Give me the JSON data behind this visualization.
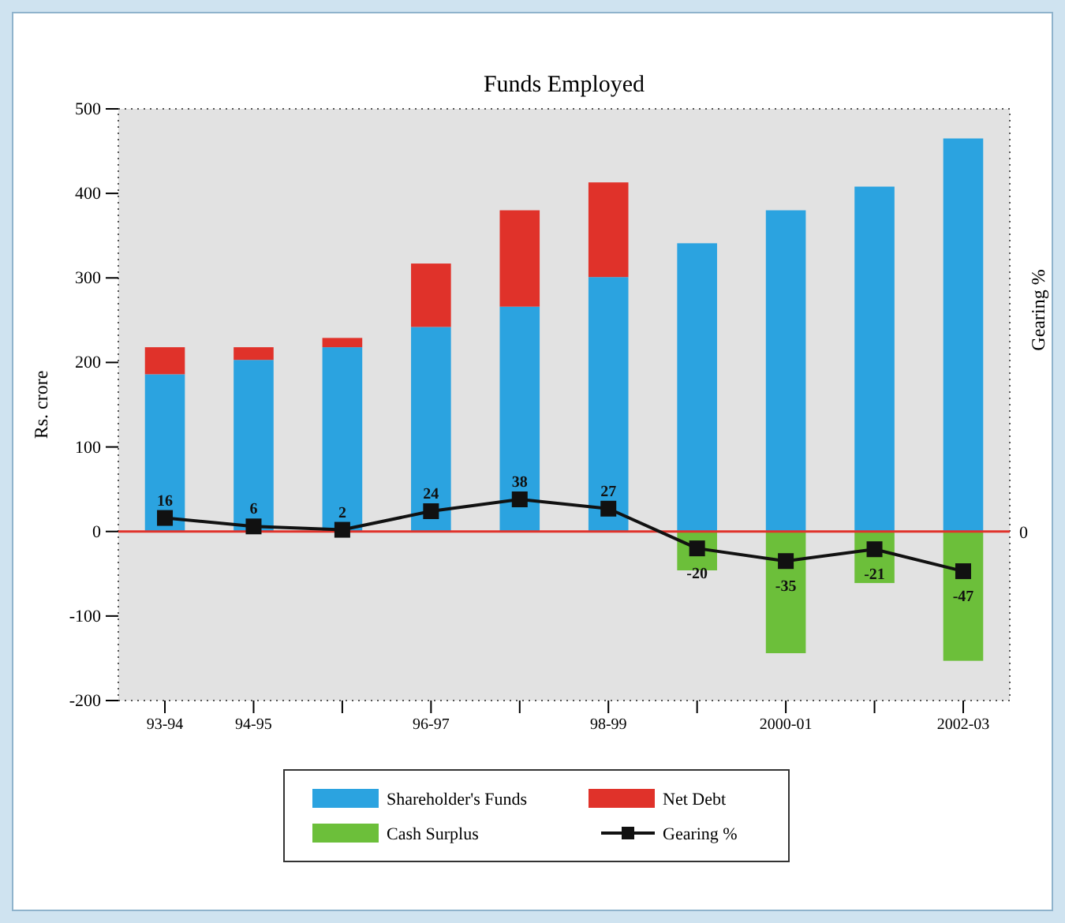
{
  "chart_data": {
    "type": "bar",
    "title": "Funds Employed",
    "ylabel": "Rs. crore",
    "y2label": "Gearing %",
    "categories": [
      "93-94",
      "94-95",
      null,
      "96-97",
      null,
      "98-99",
      null,
      "2000-01",
      null,
      "2002-03"
    ],
    "stacked": true,
    "series": [
      {
        "name": "Shareholder's Funds",
        "color": "#2ba3e0",
        "values": [
          186,
          203,
          218,
          242,
          266,
          301,
          341,
          380,
          408,
          465
        ]
      },
      {
        "name": "Net Debt",
        "color": "#e0322a",
        "values": [
          32,
          15,
          11,
          75,
          114,
          112,
          null,
          null,
          null,
          null
        ]
      },
      {
        "name": "Cash Surplus",
        "color": "#6cbf3a",
        "values": [
          null,
          null,
          null,
          null,
          null,
          null,
          -46,
          -144,
          -61,
          -153
        ]
      },
      {
        "name": "Gearing %",
        "type": "line",
        "color": "#111111",
        "marker": "square",
        "data_labels": true,
        "values": [
          16,
          6,
          2,
          24,
          38,
          27,
          -20,
          -35,
          -21,
          -47
        ]
      }
    ],
    "ylim": [
      -200,
      500
    ],
    "yticks": [
      -200,
      -100,
      0,
      100,
      200,
      300,
      400,
      500
    ],
    "annotations": [
      "0"
    ],
    "ref_lines": [
      {
        "axis": "y",
        "value": 0,
        "color": "#e0322a"
      }
    ],
    "grid": false,
    "legend": "bottom"
  }
}
